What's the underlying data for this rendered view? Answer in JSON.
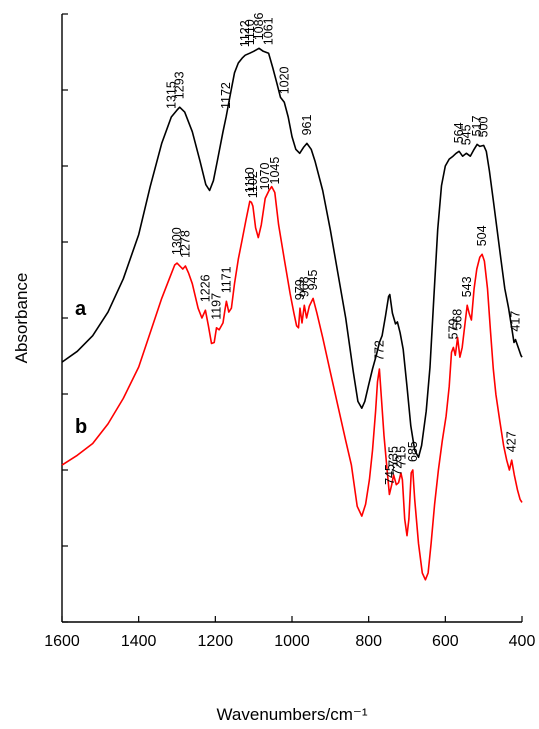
{
  "chart_data": {
    "type": "line",
    "xlabel": "Wavenumbers/cm⁻¹",
    "ylabel": "Absorbance",
    "xlim": [
      1600,
      400
    ],
    "x_reversed": true,
    "x_ticks": [
      1600,
      1400,
      1200,
      1000,
      800,
      600,
      400
    ],
    "y_tick_count": 9,
    "y_tick_labels_shown": false,
    "grid": false,
    "series": [
      {
        "name": "a",
        "color": "#000000",
        "points": [
          [
            1600,
            1.05
          ],
          [
            1560,
            1.16
          ],
          [
            1520,
            1.32
          ],
          [
            1480,
            1.56
          ],
          [
            1440,
            1.9
          ],
          [
            1400,
            2.35
          ],
          [
            1370,
            2.84
          ],
          [
            1340,
            3.28
          ],
          [
            1315,
            3.55
          ],
          [
            1300,
            3.62
          ],
          [
            1293,
            3.65
          ],
          [
            1280,
            3.6
          ],
          [
            1260,
            3.4
          ],
          [
            1240,
            3.1
          ],
          [
            1225,
            2.86
          ],
          [
            1215,
            2.8
          ],
          [
            1205,
            2.9
          ],
          [
            1195,
            3.1
          ],
          [
            1180,
            3.4
          ],
          [
            1172,
            3.55
          ],
          [
            1160,
            3.8
          ],
          [
            1150,
            4.0
          ],
          [
            1140,
            4.1
          ],
          [
            1130,
            4.15
          ],
          [
            1122,
            4.18
          ],
          [
            1110,
            4.2
          ],
          [
            1100,
            4.22
          ],
          [
            1086,
            4.25
          ],
          [
            1075,
            4.22
          ],
          [
            1061,
            4.2
          ],
          [
            1050,
            4.05
          ],
          [
            1040,
            3.9
          ],
          [
            1030,
            3.75
          ],
          [
            1020,
            3.7
          ],
          [
            1010,
            3.55
          ],
          [
            1000,
            3.35
          ],
          [
            990,
            3.22
          ],
          [
            980,
            3.18
          ],
          [
            970,
            3.24
          ],
          [
            961,
            3.28
          ],
          [
            950,
            3.22
          ],
          [
            940,
            3.1
          ],
          [
            920,
            2.8
          ],
          [
            900,
            2.4
          ],
          [
            880,
            1.95
          ],
          [
            860,
            1.5
          ],
          [
            840,
            0.95
          ],
          [
            828,
            0.65
          ],
          [
            818,
            0.58
          ],
          [
            810,
            0.65
          ],
          [
            800,
            0.82
          ],
          [
            790,
            0.98
          ],
          [
            780,
            1.12
          ],
          [
            772,
            1.25
          ],
          [
            765,
            1.32
          ],
          [
            756,
            1.52
          ],
          [
            748,
            1.72
          ],
          [
            745,
            1.74
          ],
          [
            738,
            1.55
          ],
          [
            730,
            1.44
          ],
          [
            725,
            1.46
          ],
          [
            718,
            1.35
          ],
          [
            710,
            1.18
          ],
          [
            700,
            0.8
          ],
          [
            690,
            0.4
          ],
          [
            680,
            0.15
          ],
          [
            670,
            0.08
          ],
          [
            662,
            0.2
          ],
          [
            650,
            0.55
          ],
          [
            640,
            1.0
          ],
          [
            630,
            1.7
          ],
          [
            620,
            2.4
          ],
          [
            610,
            2.85
          ],
          [
            600,
            3.05
          ],
          [
            590,
            3.12
          ],
          [
            580,
            3.15
          ],
          [
            572,
            3.18
          ],
          [
            564,
            3.2
          ],
          [
            555,
            3.15
          ],
          [
            545,
            3.18
          ],
          [
            535,
            3.15
          ],
          [
            525,
            3.22
          ],
          [
            517,
            3.27
          ],
          [
            510,
            3.25
          ],
          [
            500,
            3.26
          ],
          [
            493,
            3.2
          ],
          [
            485,
            3.0
          ],
          [
            475,
            2.7
          ],
          [
            465,
            2.4
          ],
          [
            455,
            2.1
          ],
          [
            445,
            1.8
          ],
          [
            435,
            1.6
          ],
          [
            427,
            1.4
          ],
          [
            421,
            1.25
          ],
          [
            417,
            1.28
          ],
          [
            410,
            1.2
          ],
          [
            403,
            1.12
          ],
          [
            400,
            1.1
          ]
        ],
        "peak_labels": [
          "1315",
          "1293",
          "1172",
          "1122",
          "1110",
          "1086",
          "1061",
          "1020",
          "961",
          "564",
          "545",
          "517",
          "500",
          "417"
        ]
      },
      {
        "name": "b",
        "color": "#ff0000",
        "points": [
          [
            1600,
            0.0
          ],
          [
            1560,
            0.1
          ],
          [
            1520,
            0.22
          ],
          [
            1480,
            0.42
          ],
          [
            1440,
            0.68
          ],
          [
            1400,
            1.0
          ],
          [
            1370,
            1.35
          ],
          [
            1340,
            1.7
          ],
          [
            1320,
            1.9
          ],
          [
            1306,
            2.04
          ],
          [
            1300,
            2.06
          ],
          [
            1290,
            2.02
          ],
          [
            1285,
            2.0
          ],
          [
            1278,
            2.03
          ],
          [
            1270,
            1.96
          ],
          [
            1260,
            1.85
          ],
          [
            1245,
            1.6
          ],
          [
            1235,
            1.5
          ],
          [
            1226,
            1.58
          ],
          [
            1218,
            1.42
          ],
          [
            1210,
            1.24
          ],
          [
            1203,
            1.25
          ],
          [
            1197,
            1.4
          ],
          [
            1190,
            1.38
          ],
          [
            1180,
            1.45
          ],
          [
            1175,
            1.58
          ],
          [
            1171,
            1.67
          ],
          [
            1165,
            1.56
          ],
          [
            1158,
            1.6
          ],
          [
            1150,
            1.85
          ],
          [
            1140,
            2.1
          ],
          [
            1130,
            2.3
          ],
          [
            1120,
            2.5
          ],
          [
            1110,
            2.69
          ],
          [
            1106,
            2.68
          ],
          [
            1102,
            2.64
          ],
          [
            1095,
            2.42
          ],
          [
            1088,
            2.32
          ],
          [
            1080,
            2.45
          ],
          [
            1070,
            2.72
          ],
          [
            1060,
            2.8
          ],
          [
            1053,
            2.84
          ],
          [
            1045,
            2.78
          ],
          [
            1035,
            2.45
          ],
          [
            1020,
            2.1
          ],
          [
            1005,
            1.75
          ],
          [
            995,
            1.55
          ],
          [
            988,
            1.42
          ],
          [
            983,
            1.4
          ],
          [
            979,
            1.6
          ],
          [
            974,
            1.45
          ],
          [
            968,
            1.63
          ],
          [
            962,
            1.5
          ],
          [
            955,
            1.62
          ],
          [
            945,
            1.7
          ],
          [
            935,
            1.55
          ],
          [
            920,
            1.3
          ],
          [
            900,
            0.95
          ],
          [
            880,
            0.6
          ],
          [
            860,
            0.25
          ],
          [
            845,
            0.0
          ],
          [
            830,
            -0.42
          ],
          [
            818,
            -0.52
          ],
          [
            808,
            -0.4
          ],
          [
            798,
            -0.15
          ],
          [
            790,
            0.15
          ],
          [
            782,
            0.55
          ],
          [
            777,
            0.85
          ],
          [
            772,
            0.98
          ],
          [
            767,
            0.7
          ],
          [
            760,
            0.3
          ],
          [
            752,
            -0.05
          ],
          [
            746,
            -0.3
          ],
          [
            740,
            -0.2
          ],
          [
            735,
            -0.1
          ],
          [
            728,
            -0.2
          ],
          [
            722,
            -0.18
          ],
          [
            716,
            -0.08
          ],
          [
            712,
            -0.15
          ],
          [
            706,
            -0.55
          ],
          [
            700,
            -0.72
          ],
          [
            695,
            -0.55
          ],
          [
            689,
            -0.08
          ],
          [
            685,
            -0.05
          ],
          [
            680,
            -0.35
          ],
          [
            670,
            -0.8
          ],
          [
            660,
            -1.1
          ],
          [
            652,
            -1.17
          ],
          [
            645,
            -1.1
          ],
          [
            637,
            -0.8
          ],
          [
            628,
            -0.4
          ],
          [
            618,
            -0.05
          ],
          [
            608,
            0.25
          ],
          [
            598,
            0.5
          ],
          [
            590,
            0.8
          ],
          [
            584,
            1.15
          ],
          [
            579,
            1.2
          ],
          [
            574,
            1.12
          ],
          [
            568,
            1.3
          ],
          [
            562,
            1.1
          ],
          [
            556,
            1.2
          ],
          [
            550,
            1.4
          ],
          [
            543,
            1.63
          ],
          [
            538,
            1.55
          ],
          [
            532,
            1.48
          ],
          [
            525,
            1.8
          ],
          [
            518,
            2.0
          ],
          [
            510,
            2.12
          ],
          [
            504,
            2.15
          ],
          [
            498,
            2.08
          ],
          [
            490,
            1.8
          ],
          [
            482,
            1.35
          ],
          [
            475,
            0.98
          ],
          [
            468,
            0.72
          ],
          [
            458,
            0.45
          ],
          [
            448,
            0.2
          ],
          [
            440,
            0.05
          ],
          [
            433,
            -0.05
          ],
          [
            427,
            0.05
          ],
          [
            420,
            -0.1
          ],
          [
            412,
            -0.25
          ],
          [
            405,
            -0.35
          ],
          [
            400,
            -0.38
          ]
        ],
        "peak_labels": [
          "1300",
          "1278",
          "1226",
          "1197",
          "1171",
          "1110",
          "1102",
          "1070",
          "1045",
          "979",
          "968",
          "945",
          "772",
          "745",
          "725",
          "735",
          "715",
          "685",
          "579",
          "568",
          "543",
          "504",
          "427"
        ]
      }
    ]
  }
}
